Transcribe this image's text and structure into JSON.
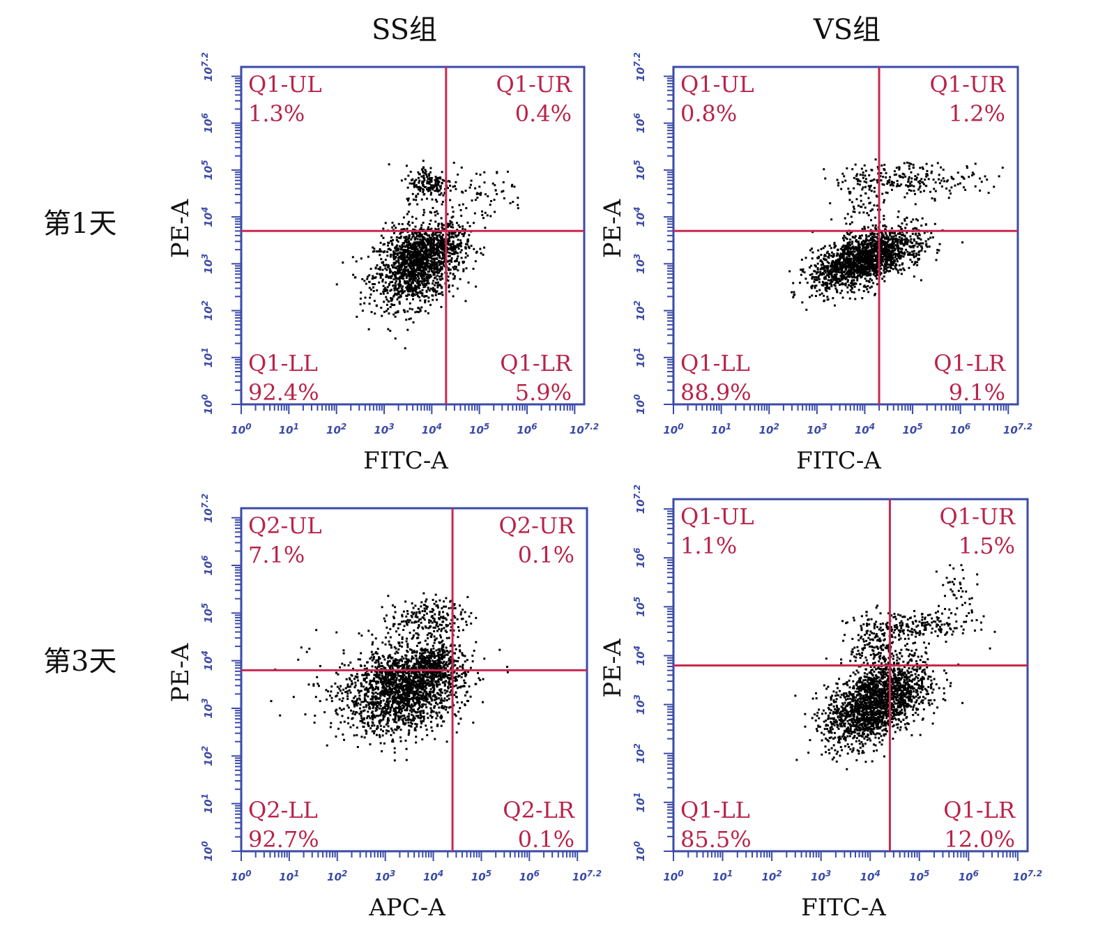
{
  "column_titles": [
    "SS组",
    "VS组"
  ],
  "row_labels": [
    "第1天",
    "第3天"
  ],
  "colors": {
    "axis": "#3a4aa8",
    "gate": "#c8284e",
    "dots": "#000000",
    "quadrant_text": "#b8234a"
  },
  "chart_data": [
    {
      "type": "scatter",
      "panel": "SS组 第1天",
      "gate": "Q1",
      "xlabel": "FITC-A",
      "ylabel": "PE-A",
      "xlim": [
        0,
        7.2
      ],
      "ylim": [
        0,
        7.2
      ],
      "x_ticks": [
        "10^0",
        "10^1",
        "10^2",
        "10^3",
        "10^4",
        "10^5",
        "10^6",
        "10^7.2"
      ],
      "y_ticks": [
        "10^0",
        "10^1",
        "10^2",
        "10^3",
        "10^4",
        "10^5",
        "10^6",
        "10^7.2"
      ],
      "gate_x": 4.3,
      "gate_y": 3.7,
      "quadrants": [
        {
          "name": "Q1-UL",
          "percent": "1.3%"
        },
        {
          "name": "Q1-UR",
          "percent": "0.4%"
        },
        {
          "name": "Q1-LL",
          "percent": "92.4%"
        },
        {
          "name": "Q1-LR",
          "percent": "5.9%"
        }
      ],
      "clusters": [
        {
          "cx": 3.7,
          "cy": 3.0,
          "sx": 0.45,
          "sy": 0.45,
          "rho": 0.3,
          "n": 1500
        },
        {
          "cx": 4.1,
          "cy": 3.4,
          "sx": 0.35,
          "sy": 0.2,
          "rho": 0.0,
          "n": 200
        },
        {
          "cx": 3.95,
          "cy": 4.7,
          "sx": 0.25,
          "sy": 0.2,
          "rho": 0.0,
          "n": 180
        },
        {
          "cx": 5.1,
          "cy": 4.5,
          "sx": 0.45,
          "sy": 0.3,
          "rho": 0.0,
          "n": 60
        }
      ]
    },
    {
      "type": "scatter",
      "panel": "VS组 第1天",
      "gate": "Q1",
      "xlabel": "FITC-A",
      "ylabel": "PE-A",
      "xlim": [
        0,
        7.2
      ],
      "ylim": [
        0,
        7.2
      ],
      "x_ticks": [
        "10^0",
        "10^1",
        "10^2",
        "10^3",
        "10^4",
        "10^5",
        "10^6",
        "10^7.2"
      ],
      "y_ticks": [
        "10^0",
        "10^1",
        "10^2",
        "10^3",
        "10^4",
        "10^5",
        "10^6",
        "10^7.2"
      ],
      "gate_x": 4.3,
      "gate_y": 3.7,
      "quadrants": [
        {
          "name": "Q1-UL",
          "percent": "0.8%"
        },
        {
          "name": "Q1-UR",
          "percent": "1.2%"
        },
        {
          "name": "Q1-LL",
          "percent": "88.9%"
        },
        {
          "name": "Q1-LR",
          "percent": "9.1%"
        }
      ],
      "clusters": [
        {
          "cx": 3.9,
          "cy": 3.05,
          "sx": 0.5,
          "sy": 0.3,
          "rho": 0.5,
          "n": 1500
        },
        {
          "cx": 4.6,
          "cy": 3.4,
          "sx": 0.4,
          "sy": 0.25,
          "rho": 0.3,
          "n": 250
        },
        {
          "cx": 4.9,
          "cy": 4.8,
          "sx": 0.8,
          "sy": 0.18,
          "rho": 0.0,
          "n": 230
        },
        {
          "cx": 4.0,
          "cy": 4.2,
          "sx": 0.3,
          "sy": 0.3,
          "rho": 0.0,
          "n": 60
        }
      ]
    },
    {
      "type": "scatter",
      "panel": "SS组 第3天",
      "gate": "Q2",
      "xlabel": "APC-A",
      "ylabel": "PE-A",
      "xlim": [
        0,
        7.2
      ],
      "ylim": [
        0,
        7.2
      ],
      "x_ticks": [
        "10^0",
        "10^1",
        "10^2",
        "10^3",
        "10^4",
        "10^5",
        "10^6",
        "10^7.2"
      ],
      "y_ticks": [
        "10^0",
        "10^1",
        "10^2",
        "10^3",
        "10^4",
        "10^5",
        "10^6",
        "10^7.2"
      ],
      "gate_x": 4.4,
      "gate_y": 3.8,
      "quadrants": [
        {
          "name": "Q2-UL",
          "percent": "7.1%"
        },
        {
          "name": "Q2-UR",
          "percent": "0.1%"
        },
        {
          "name": "Q2-LL",
          "percent": "92.7%"
        },
        {
          "name": "Q2-LR",
          "percent": "0.1%"
        }
      ],
      "clusters": [
        {
          "cx": 3.4,
          "cy": 3.4,
          "sx": 0.6,
          "sy": 0.45,
          "rho": 0.2,
          "n": 1800
        },
        {
          "cx": 4.0,
          "cy": 3.9,
          "sx": 0.3,
          "sy": 0.25,
          "rho": 0.0,
          "n": 300
        },
        {
          "cx": 3.9,
          "cy": 4.9,
          "sx": 0.4,
          "sy": 0.2,
          "rho": 0.0,
          "n": 200
        },
        {
          "cx": 2.5,
          "cy": 3.5,
          "sx": 0.8,
          "sy": 0.5,
          "rho": 0.0,
          "n": 80
        }
      ]
    },
    {
      "type": "scatter",
      "panel": "VS组 第3天",
      "gate": "Q1",
      "xlabel": "FITC-A",
      "ylabel": "PE-A",
      "xlim": [
        0,
        7.2
      ],
      "ylim": [
        0,
        7.2
      ],
      "x_ticks": [
        "10^0",
        "10^1",
        "10^2",
        "10^3",
        "10^4",
        "10^5",
        "10^6",
        "10^7.2"
      ],
      "y_ticks": [
        "10^0",
        "10^1",
        "10^2",
        "10^3",
        "10^4",
        "10^5",
        "10^6",
        "10^7.2"
      ],
      "gate_x": 4.4,
      "gate_y": 3.8,
      "quadrants": [
        {
          "name": "Q1-UL",
          "percent": "1.1%"
        },
        {
          "name": "Q1-UR",
          "percent": "1.5%"
        },
        {
          "name": "Q1-LL",
          "percent": "85.5%"
        },
        {
          "name": "Q1-LR",
          "percent": "12.0%"
        }
      ],
      "clusters": [
        {
          "cx": 4.0,
          "cy": 2.95,
          "sx": 0.45,
          "sy": 0.4,
          "rho": 0.4,
          "n": 1500
        },
        {
          "cx": 4.6,
          "cy": 3.4,
          "sx": 0.4,
          "sy": 0.35,
          "rho": 0.2,
          "n": 450
        },
        {
          "cx": 4.9,
          "cy": 4.6,
          "sx": 0.6,
          "sy": 0.15,
          "rho": 0.0,
          "n": 200
        },
        {
          "cx": 4.1,
          "cy": 4.2,
          "sx": 0.25,
          "sy": 0.3,
          "rho": 0.0,
          "n": 150
        },
        {
          "cx": 5.8,
          "cy": 5.3,
          "sx": 0.2,
          "sy": 0.35,
          "rho": 0.0,
          "n": 40
        }
      ]
    }
  ]
}
